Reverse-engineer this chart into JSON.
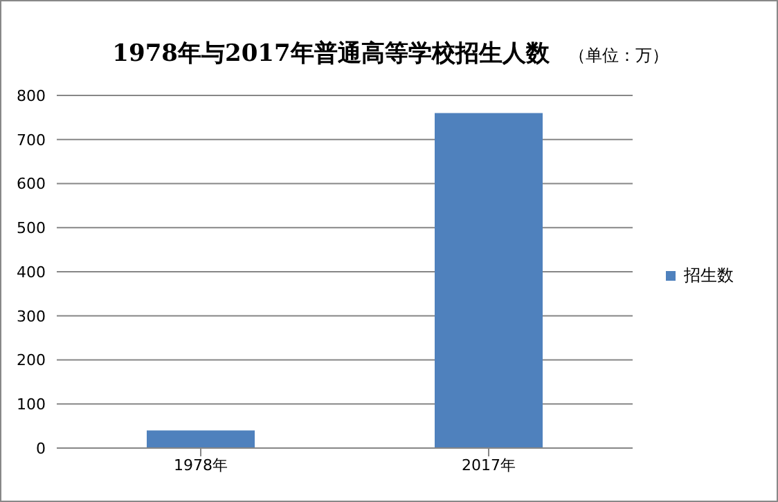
{
  "chart_data": {
    "type": "bar",
    "title": "1978年与2017年普通高等学校招生人数",
    "subtitle": "（单位：万）",
    "categories": [
      "1978年",
      "2017年"
    ],
    "series": [
      {
        "name": "招生数",
        "color": "#4f81bd",
        "values": [
          40,
          760
        ]
      }
    ],
    "ylim": [
      0,
      800
    ],
    "yticks": [
      0,
      100,
      200,
      300,
      400,
      500,
      600,
      700,
      800
    ],
    "grid": "y",
    "legend": "right"
  }
}
